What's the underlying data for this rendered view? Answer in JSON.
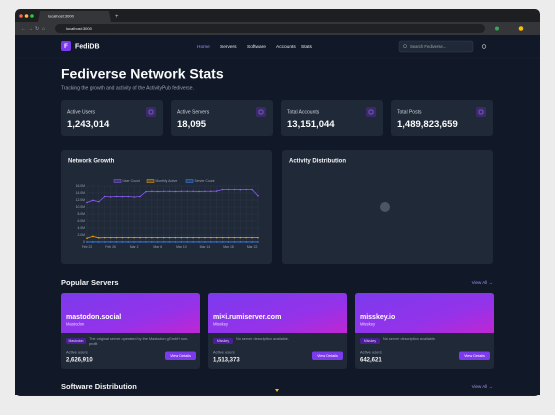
{
  "browser": {
    "tab_title": "localhost:3000",
    "url": "localhost:3000"
  },
  "nav": {
    "logo_letter": "F",
    "brand": "FediDB",
    "links": [
      "Home",
      "Servers",
      "Software",
      "Accounts",
      "Stats"
    ],
    "search_placeholder": "Search Fediverse..."
  },
  "header": {
    "title": "Fediverse Network Stats",
    "subtitle": "Tracking the growth and activity of the ActivityPub fediverse."
  },
  "stats": [
    {
      "label": "Active Users",
      "value": "1,243,014"
    },
    {
      "label": "Active Servers",
      "value": "18,095"
    },
    {
      "label": "Total Accounts",
      "value": "13,151,044"
    },
    {
      "label": "Total Posts",
      "value": "1,489,823,659"
    }
  ],
  "activity_panel": {
    "title": "Activity Distribution"
  },
  "chart_data": {
    "type": "line",
    "title": "Network Growth",
    "categories": [
      "Feb 22",
      null,
      null,
      null,
      "Feb 26",
      null,
      null,
      null,
      "Mar 2",
      null,
      null,
      null,
      "Mar 6",
      null,
      null,
      null,
      "Mar 10",
      null,
      null,
      null,
      "Mar 14",
      null,
      null,
      null,
      "Mar 18",
      null,
      null,
      null,
      "Mar 22",
      null
    ],
    "series": [
      {
        "name": "User Count",
        "color": "#8b5cf6",
        "values": [
          11300000,
          11900000,
          11500000,
          13000000,
          12900000,
          13000000,
          12950000,
          13000000,
          12850000,
          13000000,
          14400000,
          14500000,
          14450000,
          14500000,
          14500000,
          14450000,
          14500000,
          14500000,
          14500000,
          14450000,
          14500000,
          14500000,
          14550000,
          15000000,
          15000000,
          15000000,
          14950000,
          15000000,
          15000000,
          13200000
        ]
      },
      {
        "name": "Monthly Active",
        "color": "#f59e0b",
        "values": [
          1100000,
          1600000,
          1200000,
          1250000,
          1250000,
          1250000,
          1250000,
          1250000,
          1250000,
          1250000,
          1250000,
          1250000,
          1250000,
          1250000,
          1250000,
          1250000,
          1250000,
          1250000,
          1250000,
          1250000,
          1250000,
          1250000,
          1250000,
          1250000,
          1250000,
          1250000,
          1250000,
          1250000,
          1250000,
          1243014
        ]
      },
      {
        "name": "Server Count",
        "color": "#3b82f6",
        "values": [
          17800,
          17850,
          17900,
          17900,
          17950,
          17950,
          18000,
          18000,
          18000,
          18000,
          18000,
          18000,
          18000,
          18050,
          18050,
          18050,
          18050,
          18050,
          18050,
          18050,
          18050,
          18080,
          18080,
          18080,
          18080,
          18090,
          18090,
          18090,
          18095,
          18095
        ]
      }
    ],
    "ylim": [
      0,
      16000000
    ],
    "yticks": [
      0,
      {
        "value": 2000000,
        "label": "2.0M"
      },
      {
        "value": 4000000,
        "label": "4.0M"
      },
      {
        "value": 6000000,
        "label": "6.0M"
      },
      {
        "value": 8000000,
        "label": "8.0M"
      },
      {
        "value": 10000000,
        "label": "10.0M"
      },
      {
        "value": 12000000,
        "label": "12.0M"
      },
      {
        "value": 14000000,
        "label": "14.0M"
      },
      {
        "value": 16000000,
        "label": "16.0M"
      }
    ],
    "grid": true
  },
  "popular_servers": {
    "title": "Popular Servers",
    "view_all": "View All →",
    "servers": [
      {
        "name": "mastodon.social",
        "software": "Mastodon",
        "badge": "Mastodon",
        "description": "The original server operated by the Mastodon gGmbH non-profit",
        "users_label": "Active users",
        "users": "2,626,910",
        "button": "View Details"
      },
      {
        "name": "mi×i.rumiserver.com",
        "software": "Misskey",
        "badge": "Misskey",
        "description": "No server description available.",
        "users_label": "Active users",
        "users": "1,513,373",
        "button": "View Details"
      },
      {
        "name": "misskey.io",
        "software": "Misskey",
        "badge": "Misskey",
        "description": "No server description available.",
        "users_label": "Active users",
        "users": "642,621",
        "button": "View Details"
      }
    ]
  },
  "software_distribution": {
    "title": "Software Distribution",
    "view_all": "View All →"
  }
}
